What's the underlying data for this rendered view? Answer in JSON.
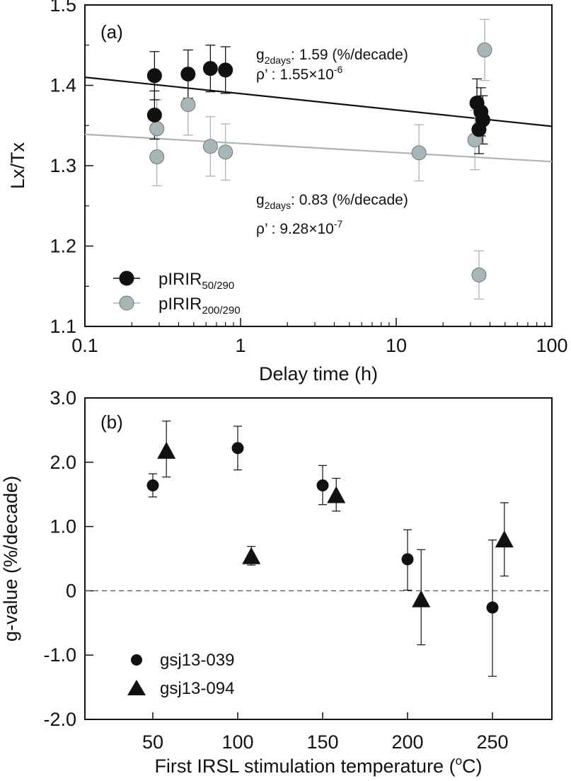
{
  "chart_data": [
    {
      "panel_label": "(a)",
      "type": "scatter",
      "xlabel": "Delay time (h)",
      "ylabel": "Lx/Tx",
      "xscale": "log",
      "xlim": [
        0.1,
        100
      ],
      "ylim": [
        1.1,
        1.5
      ],
      "xticks": [
        "0.1",
        "1",
        "10",
        "100"
      ],
      "yticks": [
        "1.1",
        "1.2",
        "1.3",
        "1.4",
        "1.5"
      ],
      "legend_position": "bottom-left",
      "series": [
        {
          "name": "pIRIR",
          "name_sub": "50/290",
          "color": "#111111",
          "points": [
            {
              "x": 0.28,
              "y": 1.412,
              "err": 0.03
            },
            {
              "x": 0.28,
              "y": 1.363,
              "err": 0.03
            },
            {
              "x": 0.46,
              "y": 1.414,
              "err": 0.03
            },
            {
              "x": 0.64,
              "y": 1.421,
              "err": 0.029
            },
            {
              "x": 0.8,
              "y": 1.419,
              "err": 0.029
            },
            {
              "x": 33,
              "y": 1.378,
              "err": 0.03
            },
            {
              "x": 34,
              "y": 1.345,
              "err": 0.03
            },
            {
              "x": 35,
              "y": 1.367,
              "err": 0.03
            },
            {
              "x": 36,
              "y": 1.357,
              "err": 0.03
            }
          ],
          "fit": {
            "x": [
              0.1,
              100
            ],
            "y": [
              1.41,
              1.349
            ]
          },
          "annotation": {
            "g_label": "g",
            "g_sub": "2days",
            "g_text": ": 1.59 (%/decade)",
            "rho_label": "ρ’  : 1.55×10",
            "rho_exp": "-6"
          }
        },
        {
          "name": "pIRIR",
          "name_sub": "200/290",
          "color": "#a9b6b8",
          "points": [
            {
              "x": 0.29,
              "y": 1.346,
              "err": 0.036
            },
            {
              "x": 0.29,
              "y": 1.311,
              "err": 0.036
            },
            {
              "x": 0.46,
              "y": 1.376,
              "err": 0.038
            },
            {
              "x": 0.64,
              "y": 1.324,
              "err": 0.037
            },
            {
              "x": 0.8,
              "y": 1.317,
              "err": 0.035
            },
            {
              "x": 14,
              "y": 1.316,
              "err": 0.035
            },
            {
              "x": 32,
              "y": 1.332,
              "err": 0.037
            },
            {
              "x": 34,
              "y": 1.164,
              "err": 0.03
            },
            {
              "x": 37,
              "y": 1.444,
              "err": 0.038
            }
          ],
          "fit": {
            "x": [
              0.1,
              100
            ],
            "y": [
              1.339,
              1.305
            ]
          },
          "annotation": {
            "g_label": "g",
            "g_sub": "2days",
            "g_text": ": 0.83 (%/decade)",
            "rho_label": "ρ’  : 9.28×10",
            "rho_exp": "-7"
          }
        }
      ]
    },
    {
      "panel_label": "(b)",
      "type": "scatter",
      "xlabel": "First IRSL stimulation temperature (",
      "xlabel_sup": "o",
      "xlabel_end": "C)",
      "ylabel": "g-value (%/decade)",
      "xlim": [
        10,
        285
      ],
      "ylim": [
        -2.0,
        3.0
      ],
      "xticks": [
        50,
        100,
        150,
        200,
        250
      ],
      "yticks": [
        "3.0",
        "2.0",
        "1.0",
        "0",
        "-1.0",
        "-2.0"
      ],
      "ytick_values": [
        3,
        2,
        1,
        0,
        -1,
        -2
      ],
      "reference_line_y": 0,
      "legend_position": "bottom-left",
      "series": [
        {
          "name": "gsj13-039",
          "marker": "circle",
          "points": [
            {
              "x": 50,
              "y": 1.64,
              "lo": 1.46,
              "hi": 1.82
            },
            {
              "x": 100,
              "y": 2.22,
              "lo": 1.88,
              "hi": 2.56
            },
            {
              "x": 150,
              "y": 1.64,
              "lo": 1.34,
              "hi": 1.95
            },
            {
              "x": 200,
              "y": 0.49,
              "lo": 0.01,
              "hi": 0.95
            },
            {
              "x": 250,
              "y": -0.26,
              "lo": -1.33,
              "hi": 0.79
            }
          ]
        },
        {
          "name": "gsj13-094",
          "marker": "triangle",
          "points": [
            {
              "x": 58,
              "y": 2.16,
              "lo": 1.77,
              "hi": 2.64
            },
            {
              "x": 108,
              "y": 0.52,
              "lo": 0.4,
              "hi": 0.69
            },
            {
              "x": 158,
              "y": 1.47,
              "lo": 1.24,
              "hi": 1.75
            },
            {
              "x": 208,
              "y": -0.15,
              "lo": -0.84,
              "hi": 0.64
            },
            {
              "x": 257,
              "y": 0.78,
              "lo": 0.23,
              "hi": 1.37
            }
          ]
        }
      ]
    }
  ]
}
